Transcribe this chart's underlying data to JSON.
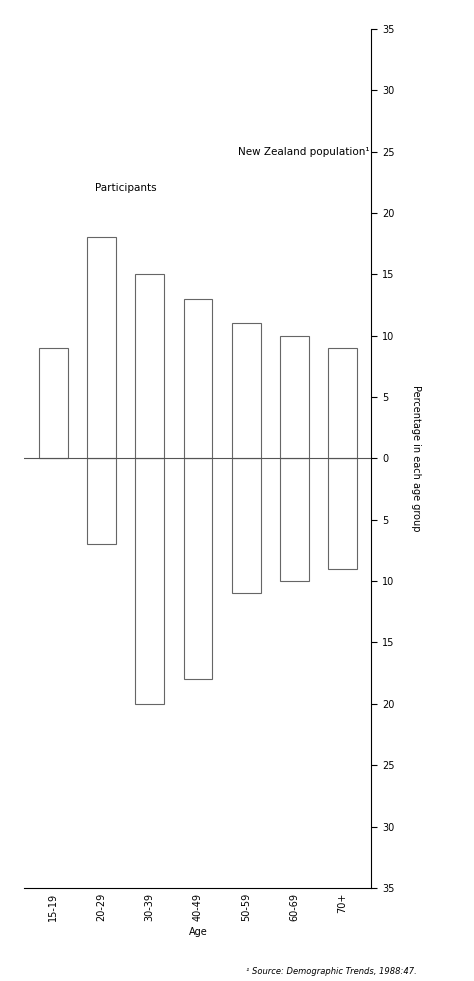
{
  "age_groups": [
    "15-19",
    "20-29",
    "30-39",
    "40-49",
    "50-59",
    "60-69",
    "70+"
  ],
  "participants": [
    0,
    -7,
    -20,
    -18,
    -11,
    -10,
    -9
  ],
  "nz_population": [
    9,
    18,
    15,
    13,
    11,
    10,
    9
  ],
  "ylim": [
    -35,
    35
  ],
  "yticks": [
    -35,
    -30,
    -25,
    -20,
    -15,
    -10,
    -5,
    0,
    5,
    10,
    15,
    20,
    25,
    30,
    35
  ],
  "yticklabels": [
    "35",
    "30",
    "25",
    "20",
    "15",
    "10",
    "5",
    "0",
    "5",
    "10",
    "15",
    "20",
    "25",
    "30",
    "35"
  ],
  "ylabel_right": "Percentage in each age group",
  "xlabel": "Age",
  "label_participants": "Participants",
  "label_nz_pop": "New Zealand population¹",
  "footnote": "¹ Source: Demographic Trends, 1988:47.",
  "bar_color": "white",
  "bar_edgecolor": "#666666",
  "bar_width": 0.6,
  "figsize": [
    4.74,
    9.81
  ],
  "dpi": 100
}
